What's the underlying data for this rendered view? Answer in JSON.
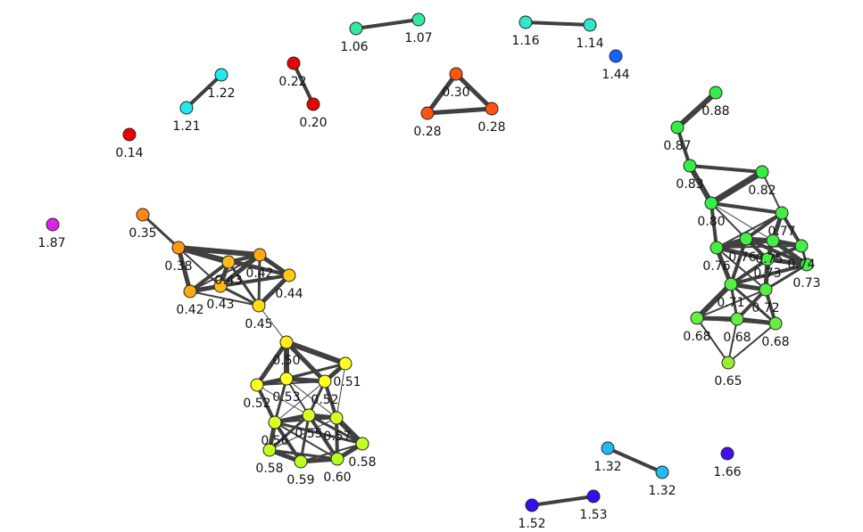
{
  "graph": {
    "type": "network-graph",
    "edge_color": "#404040",
    "node_stroke_color": "#222222",
    "nodes": [
      {
        "id": "n1",
        "label": "1.06",
        "color": "#34e8a0"
      },
      {
        "id": "n2",
        "label": "1.07",
        "color": "#34e8a0"
      },
      {
        "id": "n3",
        "label": "1.16",
        "color": "#2ee8c8"
      },
      {
        "id": "n4",
        "label": "1.14",
        "color": "#2ee8c8"
      },
      {
        "id": "n5",
        "label": "1.44",
        "color": "#1166ff"
      },
      {
        "id": "n6",
        "label": "0.22",
        "color": "#ee0000"
      },
      {
        "id": "n7",
        "label": "0.20",
        "color": "#ee0000"
      },
      {
        "id": "n8",
        "label": "1.22",
        "color": "#22e8f0"
      },
      {
        "id": "n9",
        "label": "1.21",
        "color": "#22e8f0"
      },
      {
        "id": "n10",
        "label": "0.14",
        "color": "#ee0000"
      },
      {
        "id": "n11",
        "label": "0.30",
        "color": "#ff5511"
      },
      {
        "id": "n12",
        "label": "0.28",
        "color": "#ff5511"
      },
      {
        "id": "n13",
        "label": "0.28",
        "color": "#ff5511"
      },
      {
        "id": "n14",
        "label": "1.87",
        "color": "#dd22ee"
      },
      {
        "id": "n15",
        "label": "0.35",
        "color": "#ff8811"
      },
      {
        "id": "n16",
        "label": "0.38",
        "color": "#ff9911"
      },
      {
        "id": "n17",
        "label": "0.42",
        "color": "#ffaa11"
      },
      {
        "id": "n18",
        "label": "0.42",
        "color": "#ffaa11"
      },
      {
        "id": "n19",
        "label": "0.43",
        "color": "#ffbb11"
      },
      {
        "id": "n20",
        "label": "0.43",
        "color": "#ffbb11"
      },
      {
        "id": "n21",
        "label": "0.44",
        "color": "#ffcc11"
      },
      {
        "id": "n22",
        "label": "0.45",
        "color": "#ffdd11"
      },
      {
        "id": "n23",
        "label": "0.50",
        "color": "#fff011"
      },
      {
        "id": "n24",
        "label": "0.51",
        "color": "#ffff22"
      },
      {
        "id": "n25",
        "label": "0.52",
        "color": "#ffff22"
      },
      {
        "id": "n26",
        "label": "0.53",
        "color": "#ffff22"
      },
      {
        "id": "n27",
        "label": "0.52",
        "color": "#ffff22"
      },
      {
        "id": "n28",
        "label": "0.56",
        "color": "#e0ff22"
      },
      {
        "id": "n29",
        "label": "0.55",
        "color": "#d8ff22"
      },
      {
        "id": "n30",
        "label": "0.57",
        "color": "#d0ff22"
      },
      {
        "id": "n31",
        "label": "0.58",
        "color": "#c4ff22"
      },
      {
        "id": "n32",
        "label": "0.58",
        "color": "#c4ff22"
      },
      {
        "id": "n33",
        "label": "0.59",
        "color": "#bbff22"
      },
      {
        "id": "n34",
        "label": "0.60",
        "color": "#b4ff22"
      },
      {
        "id": "n35",
        "label": "0.88",
        "color": "#33ee44"
      },
      {
        "id": "n36",
        "label": "0.87",
        "color": "#33ee44"
      },
      {
        "id": "n37",
        "label": "0.83",
        "color": "#33ee44"
      },
      {
        "id": "n38",
        "label": "0.82",
        "color": "#33ee44"
      },
      {
        "id": "n39",
        "label": "0.80",
        "color": "#33ee44"
      },
      {
        "id": "n40",
        "label": "0.77",
        "color": "#44ee44"
      },
      {
        "id": "n41",
        "label": "0.76",
        "color": "#44ee44"
      },
      {
        "id": "n42",
        "label": "0.76",
        "color": "#44ee44"
      },
      {
        "id": "n43",
        "label": "0.75",
        "color": "#44ee44"
      },
      {
        "id": "n44",
        "label": "0.74",
        "color": "#44ee44"
      },
      {
        "id": "n45",
        "label": "0.73",
        "color": "#44ee44"
      },
      {
        "id": "n46",
        "label": "0.73",
        "color": "#44ee44"
      },
      {
        "id": "n47",
        "label": "0.71",
        "color": "#55ee44"
      },
      {
        "id": "n48",
        "label": "0.72",
        "color": "#55ee44"
      },
      {
        "id": "n49",
        "label": "0.68",
        "color": "#66ee44"
      },
      {
        "id": "n50",
        "label": "0.68",
        "color": "#66ee44"
      },
      {
        "id": "n51",
        "label": "0.68",
        "color": "#66ee44"
      },
      {
        "id": "n52",
        "label": "0.65",
        "color": "#99ee33"
      },
      {
        "id": "n53",
        "label": "1.32",
        "color": "#22bbee"
      },
      {
        "id": "n54",
        "label": "1.32",
        "color": "#22bbee"
      },
      {
        "id": "n55",
        "label": "1.66",
        "color": "#4411ee"
      },
      {
        "id": "n56",
        "label": "1.52",
        "color": "#3311ee"
      },
      {
        "id": "n57",
        "label": "1.53",
        "color": "#3311ee"
      }
    ]
  }
}
